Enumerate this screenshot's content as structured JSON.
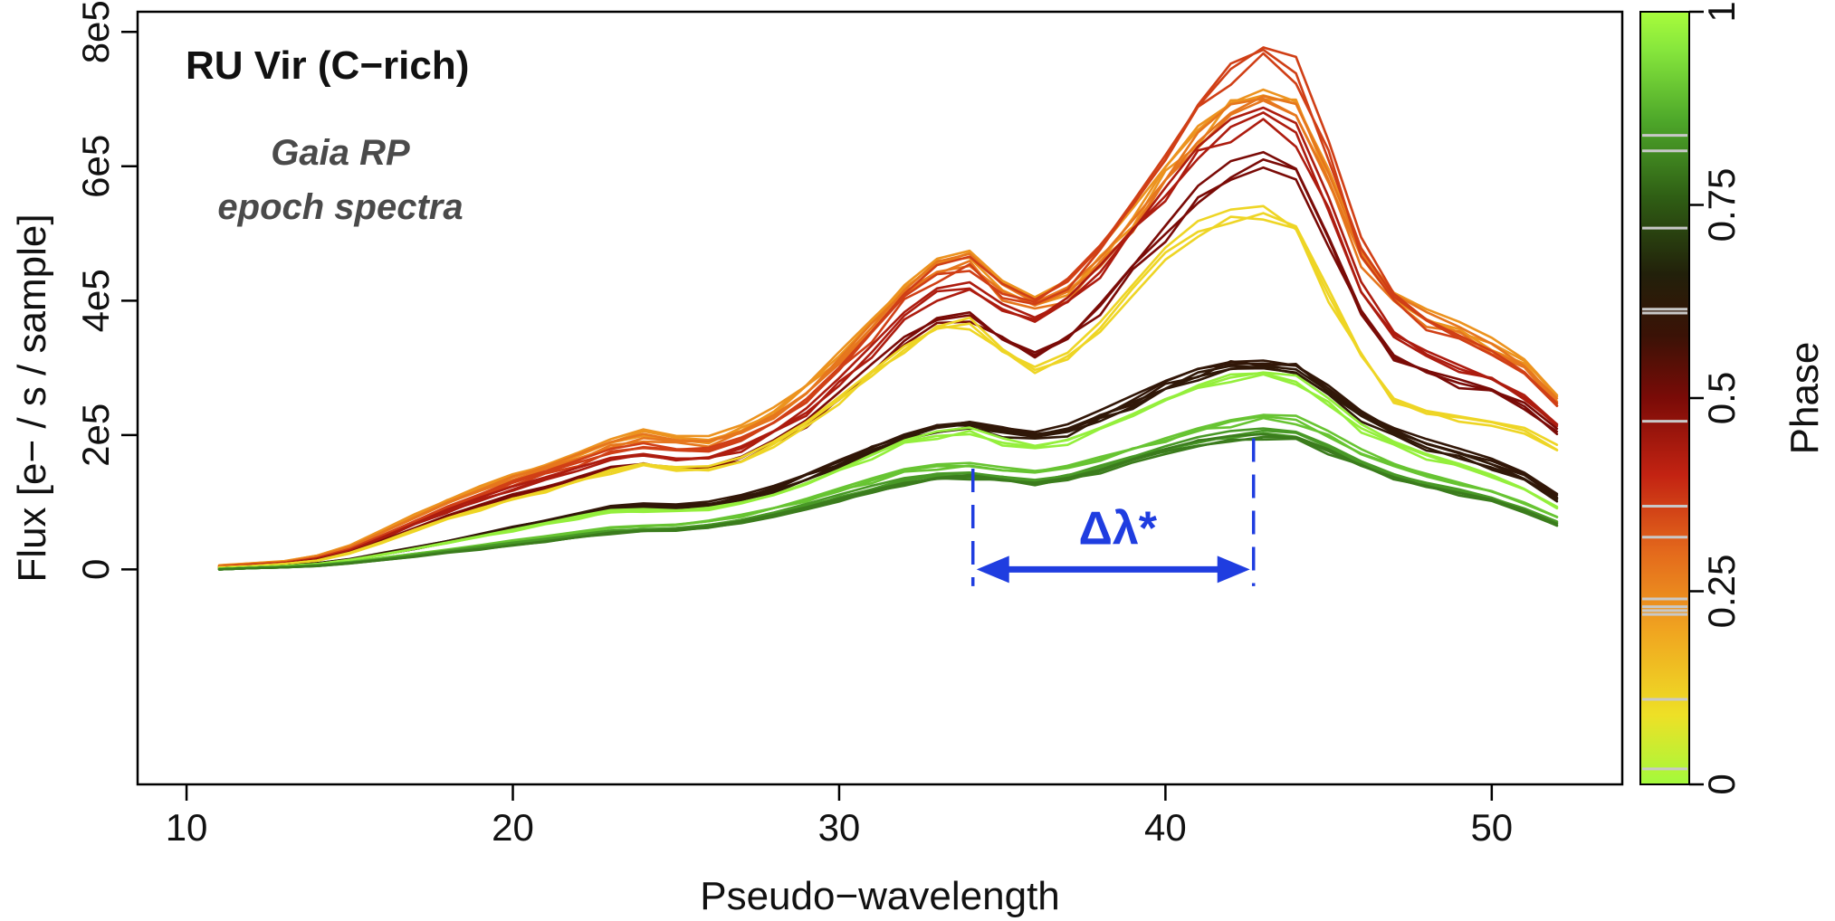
{
  "chart_data": {
    "type": "line",
    "title": "RU Vir  (C−rich)",
    "subtitle_lines": [
      "Gaia RP",
      "epoch spectra"
    ],
    "xlabel": "Pseudo−wavelength",
    "ylabel": "Flux [e− / s / sample]",
    "xlim": [
      8.5,
      54
    ],
    "ylim": [
      -320000,
      830000
    ],
    "x_ticks": [
      10,
      20,
      30,
      40,
      50
    ],
    "x_tick_labels": [
      "10",
      "20",
      "30",
      "40",
      "50"
    ],
    "y_ticks": [
      0,
      200000,
      400000,
      600000,
      800000
    ],
    "y_tick_labels": [
      "0",
      "2e5",
      "4e5",
      "6e5",
      "8e5"
    ],
    "grid": false,
    "colorbar": {
      "label": "Phase",
      "range": [
        0,
        1
      ],
      "ticks": [
        0,
        0.25,
        0.5,
        0.75,
        1
      ],
      "tick_labels": [
        "0",
        "0.25",
        "0.5",
        "0.75",
        "1"
      ],
      "colors": [
        "#a3fa3c",
        "#eee026",
        "#f0a420",
        "#e46a1c",
        "#c32312",
        "#7a0b07",
        "#3b1206",
        "#22200a",
        "#2f5e14",
        "#4ea82a",
        "#86e63c",
        "#a8fc3c"
      ],
      "marked_phases": [
        0.02,
        0.11,
        0.22,
        0.225,
        0.23,
        0.24,
        0.32,
        0.36,
        0.47,
        0.61,
        0.615,
        0.72,
        0.82,
        0.84
      ]
    },
    "annotation": {
      "label": "Δλ*",
      "x_start": 34.1,
      "x_end": 42.7,
      "color": "#1f3de0"
    },
    "x": [
      11,
      12,
      13,
      14,
      15,
      16,
      17,
      18,
      19,
      20,
      21,
      22,
      23,
      24,
      25,
      26,
      27,
      28,
      29,
      30,
      31,
      32,
      33,
      34,
      35,
      36,
      37,
      38,
      39,
      40,
      41,
      42,
      43,
      44,
      45,
      46,
      47,
      48,
      49,
      50,
      51,
      52
    ],
    "series": [
      {
        "name": "",
        "phase": 0.23,
        "values": [
          6000,
          9000,
          12000,
          20000,
          35000,
          58000,
          82000,
          103000,
          122000,
          140000,
          155000,
          172000,
          190000,
          203000,
          193000,
          193000,
          210000,
          238000,
          272000,
          318000,
          370000,
          425000,
          462000,
          470000,
          422000,
          395000,
          418000,
          465000,
          525000,
          590000,
          650000,
          695000,
          718000,
          700000,
          590000,
          470000,
          405000,
          378000,
          358000,
          335000,
          305000,
          255000
        ]
      },
      {
        "name": "",
        "phase": 0.28,
        "values": [
          5000,
          8000,
          11000,
          19000,
          33000,
          55000,
          78000,
          100000,
          118000,
          136000,
          150000,
          167000,
          184000,
          196000,
          188000,
          188000,
          204000,
          230000,
          264000,
          310000,
          360000,
          412000,
          450000,
          458000,
          412000,
          386000,
          410000,
          456000,
          516000,
          580000,
          640000,
          683000,
          705000,
          688000,
          580000,
          462000,
          398000,
          372000,
          352000,
          330000,
          300000,
          250000
        ]
      },
      {
        "name": "",
        "phase": 0.36,
        "values": [
          4000,
          7000,
          10000,
          17000,
          30000,
          50000,
          72000,
          93000,
          110000,
          128000,
          142000,
          158000,
          175000,
          185000,
          178000,
          178000,
          194000,
          220000,
          254000,
          298000,
          348000,
          400000,
          440000,
          452000,
          415000,
          395000,
          425000,
          480000,
          550000,
          620000,
          690000,
          740000,
          765000,
          745000,
          620000,
          480000,
          400000,
          365000,
          345000,
          325000,
          295000,
          245000
        ]
      },
      {
        "name": "",
        "phase": 0.43,
        "values": [
          3000,
          6000,
          9000,
          16000,
          28000,
          47000,
          67000,
          87000,
          104000,
          120000,
          134000,
          149000,
          165000,
          172000,
          166000,
          166000,
          180000,
          204000,
          236000,
          278000,
          324000,
          372000,
          408000,
          420000,
          392000,
          375000,
          400000,
          445000,
          505000,
          565000,
          620000,
          655000,
          668000,
          645000,
          540000,
          420000,
          350000,
          320000,
          300000,
          285000,
          260000,
          215000
        ]
      },
      {
        "name": "",
        "phase": 0.5,
        "values": [
          2000,
          5000,
          8000,
          14000,
          25000,
          42000,
          60000,
          78000,
          94000,
          110000,
          122000,
          136000,
          150000,
          157000,
          152000,
          152000,
          165000,
          188000,
          216000,
          256000,
          298000,
          340000,
          368000,
          378000,
          345000,
          325000,
          345000,
          390000,
          445000,
          500000,
          555000,
          590000,
          605000,
          585000,
          490000,
          385000,
          320000,
          295000,
          278000,
          265000,
          245000,
          205000
        ]
      },
      {
        "name": "",
        "phase": 0.11,
        "values": [
          3000,
          5000,
          8000,
          13000,
          24000,
          40000,
          58000,
          75000,
          90000,
          105000,
          118000,
          132000,
          146000,
          155000,
          150000,
          150000,
          162000,
          185000,
          214000,
          252000,
          292000,
          332000,
          360000,
          368000,
          325000,
          300000,
          318000,
          360000,
          412000,
          465000,
          505000,
          525000,
          535000,
          505000,
          410000,
          320000,
          255000,
          235000,
          225000,
          215000,
          205000,
          180000
        ]
      },
      {
        "name": "",
        "phase": 0.61,
        "values": [
          1000,
          3000,
          5000,
          9000,
          15000,
          24000,
          33000,
          42000,
          52000,
          63000,
          73000,
          83000,
          93000,
          96000,
          94000,
          98000,
          108000,
          122000,
          140000,
          160000,
          182000,
          202000,
          215000,
          218000,
          208000,
          200000,
          210000,
          230000,
          252000,
          275000,
          295000,
          308000,
          312000,
          305000,
          270000,
          232000,
          208000,
          190000,
          175000,
          160000,
          140000,
          110000
        ]
      },
      {
        "name": "",
        "phase": 0.615,
        "values": [
          1000,
          3000,
          5000,
          8000,
          14000,
          22000,
          31000,
          40000,
          50000,
          60000,
          70000,
          80000,
          89000,
          92000,
          90000,
          94000,
          104000,
          117000,
          134000,
          154000,
          175000,
          195000,
          208000,
          212000,
          202000,
          194000,
          204000,
          224000,
          246000,
          268000,
          288000,
          300000,
          304000,
          297000,
          262000,
          225000,
          200000,
          182000,
          168000,
          153000,
          133000,
          104000
        ]
      },
      {
        "name": "",
        "phase": 0.97,
        "values": [
          1000,
          3000,
          5000,
          8000,
          14000,
          22000,
          31000,
          40000,
          49000,
          58000,
          67000,
          77000,
          86000,
          88000,
          87000,
          90000,
          99000,
          112000,
          129000,
          148000,
          168000,
          188000,
          200000,
          205000,
          190000,
          180000,
          190000,
          210000,
          232000,
          255000,
          272000,
          285000,
          290000,
          283000,
          248000,
          210000,
          185000,
          168000,
          155000,
          140000,
          120000,
          92000
        ]
      },
      {
        "name": "",
        "phase": 0.9,
        "values": [
          1000,
          2000,
          4000,
          7000,
          11000,
          17000,
          23000,
          29000,
          35000,
          42000,
          48000,
          55000,
          62000,
          65000,
          67000,
          72000,
          80000,
          91000,
          104000,
          118000,
          132000,
          145000,
          152000,
          155000,
          150000,
          146000,
          152000,
          165000,
          180000,
          195000,
          208000,
          218000,
          224000,
          222000,
          200000,
          175000,
          155000,
          140000,
          128000,
          117000,
          100000,
          78000
        ]
      },
      {
        "name": "",
        "phase": 0.84,
        "values": [
          0,
          2000,
          3000,
          6000,
          10000,
          15000,
          21000,
          27000,
          33000,
          39000,
          45000,
          51000,
          57000,
          60000,
          62000,
          66000,
          73000,
          83000,
          95000,
          108000,
          121000,
          133000,
          140000,
          143000,
          138000,
          134000,
          140000,
          152000,
          166000,
          180000,
          192000,
          200000,
          204000,
          200000,
          182000,
          160000,
          142000,
          128000,
          117000,
          106000,
          90000,
          70000
        ]
      },
      {
        "name": "",
        "phase": 0.8,
        "values": [
          0,
          2000,
          3000,
          5000,
          9000,
          14000,
          19000,
          25000,
          30000,
          36000,
          42000,
          48000,
          54000,
          57000,
          59000,
          63000,
          70000,
          79000,
          90000,
          103000,
          116000,
          128000,
          135000,
          138000,
          133000,
          129000,
          135000,
          146000,
          160000,
          174000,
          186000,
          194000,
          198000,
          194000,
          176000,
          155000,
          138000,
          124000,
          113000,
          102000,
          86000,
          66000
        ]
      }
    ]
  }
}
